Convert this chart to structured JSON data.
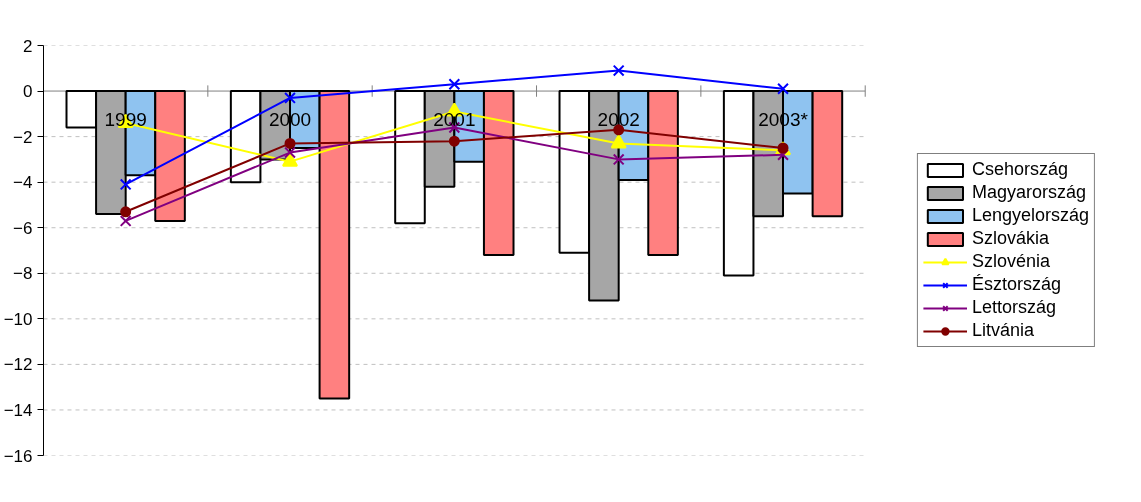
{
  "chart_data": {
    "type": "bar",
    "categories": [
      "1999",
      "2000",
      "2001",
      "2002",
      "2003*"
    ],
    "series": [
      {
        "name": "Csehország",
        "color": "#ffffff",
        "values": [
          -1.6,
          -4.0,
          -5.8,
          -7.1,
          -8.1
        ]
      },
      {
        "name": "Magyarország",
        "color": "#a6a6a6",
        "values": [
          -5.4,
          -3.0,
          -4.2,
          -9.2,
          -5.5
        ]
      },
      {
        "name": "Lengyelország",
        "color": "#8fc3f0",
        "values": [
          -3.7,
          -2.5,
          -3.1,
          -3.9,
          -4.5
        ]
      },
      {
        "name": "Szlovákia",
        "color": "#ff8080",
        "values": [
          -5.7,
          -13.5,
          -7.2,
          -7.2,
          -5.5
        ]
      },
      {
        "name": "Szlovénia",
        "type": "line",
        "marker": "triangle",
        "color": "#ffff00",
        "values": [
          -1.4,
          -3.1,
          -0.9,
          -2.3,
          -2.6
        ]
      },
      {
        "name": "Észtország",
        "type": "line",
        "marker": "cross",
        "color": "#0000ff",
        "values": [
          -4.1,
          -0.3,
          0.3,
          0.9,
          0.1
        ]
      },
      {
        "name": "Lettország",
        "type": "line",
        "marker": "cross",
        "color": "#800080",
        "values": [
          -5.7,
          -2.7,
          -1.6,
          -3.0,
          -2.8
        ]
      },
      {
        "name": "Litvánia",
        "type": "line",
        "marker": "circle",
        "color": "#800000",
        "values": [
          -5.3,
          -2.3,
          -2.2,
          -1.7,
          -2.5
        ]
      }
    ],
    "ylim": [
      -16,
      2
    ],
    "yticks": [
      -16,
      -14,
      -12,
      -10,
      -8,
      -6,
      -4,
      -2,
      0,
      2
    ],
    "grid": "y",
    "legend": "right"
  }
}
